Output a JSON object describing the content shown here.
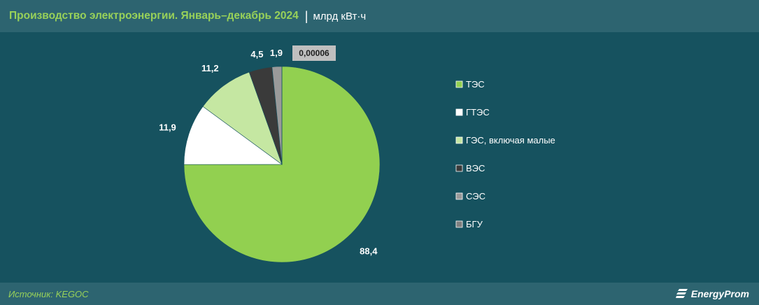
{
  "header": {
    "title": "Производство электроэнергии. Январь–декабрь 2024",
    "unit": "млрд кВт·ч"
  },
  "footer": {
    "source": "Источник: KEGOC",
    "brand": "EnergyProm"
  },
  "colors": {
    "page_bg": "#16525f",
    "band_bg": "#2d6470",
    "accent": "#98d159"
  },
  "chart_data": {
    "type": "pie",
    "categories": [
      "ТЭС",
      "ГТЭС",
      "ГЭС, включая малые",
      "ВЭС",
      "СЭС",
      "БГУ"
    ],
    "values": [
      88.4,
      11.9,
      11.2,
      4.5,
      1.9,
      6e-05
    ],
    "data_labels": [
      "88,4",
      "11,9",
      "11,2",
      "4,5",
      "1,9",
      "0,00006"
    ],
    "colors": [
      "#92d050",
      "#ffffff",
      "#c5e7a2",
      "#3a3a3a",
      "#9a9a9a",
      "#7f7f7f"
    ],
    "legend": {
      "position": "right",
      "items": [
        "ТЭС",
        "ГТЭС",
        "ГЭС, включая малые",
        "ВЭС",
        "СЭС",
        "БГУ"
      ]
    }
  }
}
